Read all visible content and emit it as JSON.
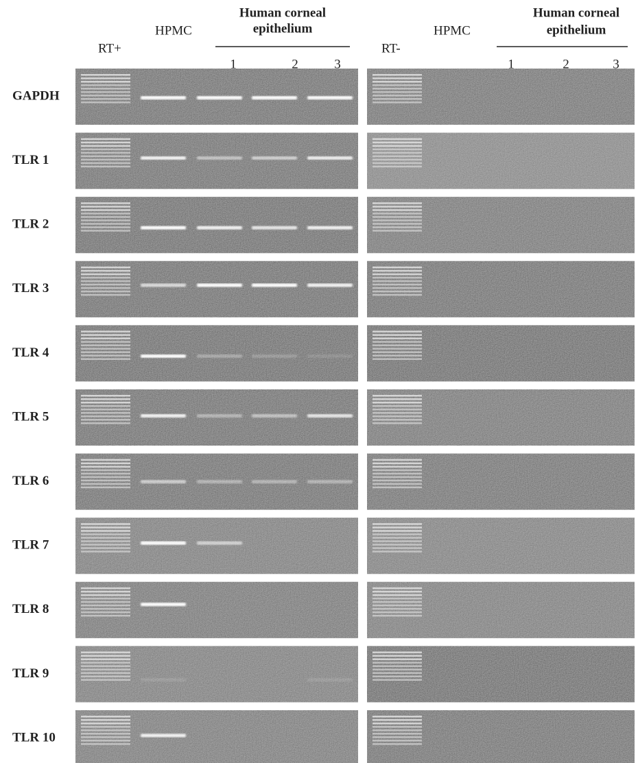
{
  "left": {
    "control": "RT+",
    "sample": "HPMC",
    "group_line1": "Human corneal",
    "group_line2": "epithelium",
    "lanes": [
      "1",
      "2",
      "3"
    ]
  },
  "right": {
    "control": "RT-",
    "sample": "HPMC",
    "group_line1": "Human corneal",
    "group_line2": "epithelium",
    "lanes": [
      "1",
      "2",
      "3"
    ]
  },
  "rows": [
    "GAPDH",
    "TLR 1",
    "TLR 2",
    "TLR 3",
    "TLR 4",
    "TLR 5",
    "TLR 6",
    "TLR 7",
    "TLR 8",
    "TLR 9",
    "TLR 10"
  ]
}
